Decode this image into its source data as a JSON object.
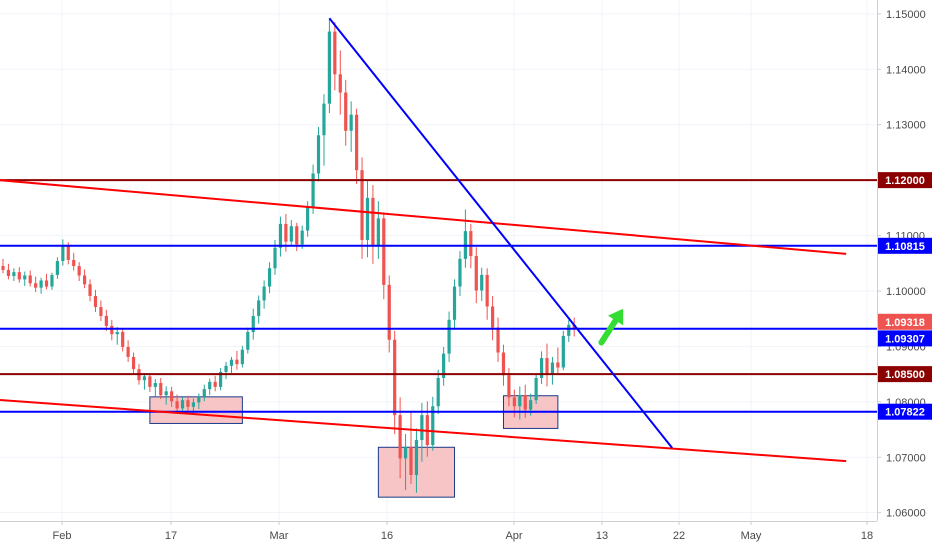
{
  "chart_data": {
    "type": "candlestick",
    "x_tick_labels": [
      "Feb",
      "17",
      "Mar",
      "16",
      "Apr",
      "13",
      "22",
      "May",
      "18"
    ],
    "y_tick_labels": [
      "1.15000",
      "1.14000",
      "1.13000",
      "1.12000",
      "1.11000",
      "1.10000",
      "1.09000",
      "1.08000",
      "1.07000",
      "1.06000"
    ],
    "y_ticks": [
      1.15,
      1.14,
      1.13,
      1.12,
      1.11,
      1.1,
      1.09,
      1.08,
      1.07,
      1.06
    ],
    "ylim": [
      1.0585,
      1.1525
    ],
    "grid": true,
    "colors": {
      "up": "#26a69a",
      "down": "#ef5350",
      "horizontal_blue": "#0000ff",
      "horizontal_darkred": "#8b0000",
      "channel_red": "#ff0000",
      "trendline_blue": "#0000ff",
      "arrow": "#33dd33",
      "support_zone_fill": "#f7c5c5",
      "support_zone_border": "#1a3a8a"
    },
    "horizontal_levels": [
      {
        "label": "1.12000",
        "value": 1.12,
        "color": "#8b0000"
      },
      {
        "label": "1.10815",
        "value": 1.10815,
        "color": "#0000ff"
      },
      {
        "label": "1.09318",
        "value": 1.09318,
        "color": "#0000ff"
      },
      {
        "label": "1.09307",
        "value": 1.09307,
        "color": "#0000ff"
      },
      {
        "label": "1.08500",
        "value": 1.085,
        "color": "#8b0000"
      },
      {
        "label": "1.07822",
        "value": 1.07822,
        "color": "#0000ff"
      }
    ],
    "current_price": {
      "label": "1.09318",
      "value": 1.09318,
      "color": "#ef5350"
    },
    "channel_lines": [
      {
        "from": {
          "bar": -3,
          "price": 1.1202
        },
        "to": {
          "bar": 155,
          "price": 1.1067
        }
      },
      {
        "from": {
          "bar": -3,
          "price": 1.0805
        },
        "to": {
          "bar": 155,
          "price": 1.0693
        }
      }
    ],
    "descending_trendline": {
      "from": {
        "bar": 60,
        "price": 1.1492
      },
      "to": {
        "bar": 123,
        "price": 1.0717
      }
    },
    "support_zones": [
      {
        "bar_start": 27,
        "bar_end": 44,
        "price_high": 1.0809,
        "price_low": 1.0761
      },
      {
        "bar_start": 69,
        "bar_end": 83,
        "price_high": 1.0718,
        "price_low": 1.0628
      },
      {
        "bar_start": 92,
        "bar_end": 102,
        "price_high": 1.0811,
        "price_low": 1.0752
      }
    ],
    "arrow": {
      "from": {
        "bar": 110,
        "price": 1.0907
      },
      "to": {
        "bar": 114,
        "price": 1.0968
      }
    },
    "bars": [
      {
        "o": 1.1045,
        "h": 1.1058,
        "l": 1.1032,
        "c": 1.1038
      },
      {
        "o": 1.1038,
        "h": 1.1049,
        "l": 1.1021,
        "c": 1.1027
      },
      {
        "o": 1.1027,
        "h": 1.1041,
        "l": 1.1018,
        "c": 1.1034
      },
      {
        "o": 1.1034,
        "h": 1.1043,
        "l": 1.1015,
        "c": 1.1021
      },
      {
        "o": 1.1021,
        "h": 1.1035,
        "l": 1.1009,
        "c": 1.1028
      },
      {
        "o": 1.1028,
        "h": 1.1037,
        "l": 1.1008,
        "c": 1.1014
      },
      {
        "o": 1.1014,
        "h": 1.1026,
        "l": 1.0998,
        "c": 1.1006
      },
      {
        "o": 1.1006,
        "h": 1.1024,
        "l": 1.0995,
        "c": 1.1019
      },
      {
        "o": 1.1019,
        "h": 1.1031,
        "l": 1.1003,
        "c": 1.1008
      },
      {
        "o": 1.1008,
        "h": 1.1033,
        "l": 1.1002,
        "c": 1.1029
      },
      {
        "o": 1.1029,
        "h": 1.1061,
        "l": 1.1022,
        "c": 1.1054
      },
      {
        "o": 1.1054,
        "h": 1.1093,
        "l": 1.1046,
        "c": 1.1082
      },
      {
        "o": 1.1082,
        "h": 1.1088,
        "l": 1.1048,
        "c": 1.1056
      },
      {
        "o": 1.1056,
        "h": 1.1069,
        "l": 1.1037,
        "c": 1.1045
      },
      {
        "o": 1.1045,
        "h": 1.1052,
        "l": 1.1018,
        "c": 1.1028
      },
      {
        "o": 1.1028,
        "h": 1.1039,
        "l": 1.1005,
        "c": 1.1012
      },
      {
        "o": 1.1012,
        "h": 1.1021,
        "l": 1.0981,
        "c": 1.0991
      },
      {
        "o": 1.0991,
        "h": 1.1002,
        "l": 1.0962,
        "c": 1.0971
      },
      {
        "o": 1.0971,
        "h": 1.0983,
        "l": 1.0946,
        "c": 1.0955
      },
      {
        "o": 1.0955,
        "h": 1.0966,
        "l": 1.0928,
        "c": 1.0937
      },
      {
        "o": 1.0937,
        "h": 1.0948,
        "l": 1.0911,
        "c": 1.0922
      },
      {
        "o": 1.0922,
        "h": 1.0935,
        "l": 1.0903,
        "c": 1.0926
      },
      {
        "o": 1.0926,
        "h": 1.0932,
        "l": 1.0891,
        "c": 1.0899
      },
      {
        "o": 1.0899,
        "h": 1.0911,
        "l": 1.0872,
        "c": 1.0881
      },
      {
        "o": 1.0881,
        "h": 1.0889,
        "l": 1.0851,
        "c": 1.0859
      },
      {
        "o": 1.0859,
        "h": 1.0868,
        "l": 1.0831,
        "c": 1.0839
      },
      {
        "o": 1.0839,
        "h": 1.0852,
        "l": 1.0822,
        "c": 1.0846
      },
      {
        "o": 1.0846,
        "h": 1.0851,
        "l": 1.0818,
        "c": 1.0827
      },
      {
        "o": 1.0827,
        "h": 1.0841,
        "l": 1.0809,
        "c": 1.0834
      },
      {
        "o": 1.0834,
        "h": 1.0843,
        "l": 1.0805,
        "c": 1.0812
      },
      {
        "o": 1.0812,
        "h": 1.0828,
        "l": 1.0795,
        "c": 1.0819
      },
      {
        "o": 1.0819,
        "h": 1.0827,
        "l": 1.0791,
        "c": 1.0801
      },
      {
        "o": 1.0801,
        "h": 1.0813,
        "l": 1.0779,
        "c": 1.0788
      },
      {
        "o": 1.0788,
        "h": 1.0808,
        "l": 1.0778,
        "c": 1.0803
      },
      {
        "o": 1.0803,
        "h": 1.0811,
        "l": 1.0782,
        "c": 1.0791
      },
      {
        "o": 1.0791,
        "h": 1.0806,
        "l": 1.0779,
        "c": 1.0799
      },
      {
        "o": 1.0799,
        "h": 1.0815,
        "l": 1.0787,
        "c": 1.0809
      },
      {
        "o": 1.0809,
        "h": 1.0831,
        "l": 1.0801,
        "c": 1.0823
      },
      {
        "o": 1.0823,
        "h": 1.0842,
        "l": 1.0812,
        "c": 1.0836
      },
      {
        "o": 1.0836,
        "h": 1.0847,
        "l": 1.0819,
        "c": 1.0827
      },
      {
        "o": 1.0827,
        "h": 1.0861,
        "l": 1.0821,
        "c": 1.0854
      },
      {
        "o": 1.0854,
        "h": 1.0872,
        "l": 1.0841,
        "c": 1.0865
      },
      {
        "o": 1.0865,
        "h": 1.0881,
        "l": 1.0852,
        "c": 1.0876
      },
      {
        "o": 1.0876,
        "h": 1.0892,
        "l": 1.0858,
        "c": 1.0868
      },
      {
        "o": 1.0868,
        "h": 1.0901,
        "l": 1.0862,
        "c": 1.0894
      },
      {
        "o": 1.0894,
        "h": 1.0934,
        "l": 1.0887,
        "c": 1.0926
      },
      {
        "o": 1.0926,
        "h": 1.0968,
        "l": 1.0912,
        "c": 1.0955
      },
      {
        "o": 1.0955,
        "h": 1.0992,
        "l": 1.0941,
        "c": 1.0983
      },
      {
        "o": 1.0983,
        "h": 1.1019,
        "l": 1.0968,
        "c": 1.1008
      },
      {
        "o": 1.1008,
        "h": 1.1052,
        "l": 1.0996,
        "c": 1.1041
      },
      {
        "o": 1.1041,
        "h": 1.1092,
        "l": 1.1029,
        "c": 1.1078
      },
      {
        "o": 1.1078,
        "h": 1.1134,
        "l": 1.1062,
        "c": 1.1121
      },
      {
        "o": 1.1121,
        "h": 1.1139,
        "l": 1.1071,
        "c": 1.1089
      },
      {
        "o": 1.1089,
        "h": 1.1128,
        "l": 1.1081,
        "c": 1.1117
      },
      {
        "o": 1.1117,
        "h": 1.1123,
        "l": 1.1072,
        "c": 1.1084
      },
      {
        "o": 1.1084,
        "h": 1.1118,
        "l": 1.1076,
        "c": 1.1109
      },
      {
        "o": 1.1109,
        "h": 1.1162,
        "l": 1.1098,
        "c": 1.1151
      },
      {
        "o": 1.1151,
        "h": 1.1228,
        "l": 1.1139,
        "c": 1.1212
      },
      {
        "o": 1.1212,
        "h": 1.1296,
        "l": 1.1198,
        "c": 1.1281
      },
      {
        "o": 1.1281,
        "h": 1.1355,
        "l": 1.1226,
        "c": 1.1338
      },
      {
        "o": 1.1338,
        "h": 1.1492,
        "l": 1.1321,
        "c": 1.1468
      },
      {
        "o": 1.1468,
        "h": 1.1485,
        "l": 1.1362,
        "c": 1.1391
      },
      {
        "o": 1.1391,
        "h": 1.1434,
        "l": 1.1318,
        "c": 1.1358
      },
      {
        "o": 1.1358,
        "h": 1.1381,
        "l": 1.1262,
        "c": 1.1289
      },
      {
        "o": 1.1289,
        "h": 1.1342,
        "l": 1.1251,
        "c": 1.1318
      },
      {
        "o": 1.1318,
        "h": 1.1329,
        "l": 1.1193,
        "c": 1.1218
      },
      {
        "o": 1.1218,
        "h": 1.1241,
        "l": 1.1058,
        "c": 1.1092
      },
      {
        "o": 1.1092,
        "h": 1.1198,
        "l": 1.1061,
        "c": 1.1168
      },
      {
        "o": 1.1168,
        "h": 1.1191,
        "l": 1.1049,
        "c": 1.1081
      },
      {
        "o": 1.1081,
        "h": 1.1162,
        "l": 1.1058,
        "c": 1.1131
      },
      {
        "o": 1.1131,
        "h": 1.1142,
        "l": 1.0985,
        "c": 1.1011
      },
      {
        "o": 1.1011,
        "h": 1.1028,
        "l": 1.0889,
        "c": 1.0912
      },
      {
        "o": 1.0912,
        "h": 1.0928,
        "l": 1.0742,
        "c": 1.0776
      },
      {
        "o": 1.0776,
        "h": 1.0808,
        "l": 1.0662,
        "c": 1.0698
      },
      {
        "o": 1.0698,
        "h": 1.0742,
        "l": 1.0641,
        "c": 1.0719
      },
      {
        "o": 1.0719,
        "h": 1.0781,
        "l": 1.0652,
        "c": 1.0668
      },
      {
        "o": 1.0668,
        "h": 1.0752,
        "l": 1.0636,
        "c": 1.0731
      },
      {
        "o": 1.0731,
        "h": 1.0798,
        "l": 1.0692,
        "c": 1.0776
      },
      {
        "o": 1.0776,
        "h": 1.0801,
        "l": 1.0701,
        "c": 1.0722
      },
      {
        "o": 1.0722,
        "h": 1.0809,
        "l": 1.0712,
        "c": 1.0792
      },
      {
        "o": 1.0792,
        "h": 1.0858,
        "l": 1.0778,
        "c": 1.0843
      },
      {
        "o": 1.0843,
        "h": 1.0899,
        "l": 1.0829,
        "c": 1.0887
      },
      {
        "o": 1.0887,
        "h": 1.0963,
        "l": 1.0872,
        "c": 1.0948
      },
      {
        "o": 1.0948,
        "h": 1.1021,
        "l": 1.0931,
        "c": 1.1008
      },
      {
        "o": 1.1008,
        "h": 1.1072,
        "l": 1.0991,
        "c": 1.1058
      },
      {
        "o": 1.1058,
        "h": 1.1147,
        "l": 1.1042,
        "c": 1.1108
      },
      {
        "o": 1.1108,
        "h": 1.1121,
        "l": 1.1041,
        "c": 1.1063
      },
      {
        "o": 1.1063,
        "h": 1.1079,
        "l": 1.0978,
        "c": 1.1001
      },
      {
        "o": 1.1001,
        "h": 1.1042,
        "l": 1.0982,
        "c": 1.1029
      },
      {
        "o": 1.1029,
        "h": 1.1041,
        "l": 1.0948,
        "c": 1.0972
      },
      {
        "o": 1.0972,
        "h": 1.0991,
        "l": 1.0911,
        "c": 1.0934
      },
      {
        "o": 1.0934,
        "h": 1.0952,
        "l": 1.0872,
        "c": 1.0889
      },
      {
        "o": 1.0889,
        "h": 1.0903,
        "l": 1.0829,
        "c": 1.0848
      },
      {
        "o": 1.0848,
        "h": 1.0861,
        "l": 1.0792,
        "c": 1.0808
      },
      {
        "o": 1.0808,
        "h": 1.0822,
        "l": 1.0772,
        "c": 1.0792
      },
      {
        "o": 1.0792,
        "h": 1.0828,
        "l": 1.0768,
        "c": 1.0812
      },
      {
        "o": 1.0812,
        "h": 1.0831,
        "l": 1.0771,
        "c": 1.0786
      },
      {
        "o": 1.0786,
        "h": 1.0815,
        "l": 1.0775,
        "c": 1.0803
      },
      {
        "o": 1.0803,
        "h": 1.0852,
        "l": 1.0796,
        "c": 1.0843
      },
      {
        "o": 1.0843,
        "h": 1.0891,
        "l": 1.0832,
        "c": 1.0879
      },
      {
        "o": 1.0879,
        "h": 1.0905,
        "l": 1.0828,
        "c": 1.0849
      },
      {
        "o": 1.0849,
        "h": 1.0881,
        "l": 1.0831,
        "c": 1.0871
      },
      {
        "o": 1.0871,
        "h": 1.0898,
        "l": 1.0852,
        "c": 1.0862
      },
      {
        "o": 1.0862,
        "h": 1.0928,
        "l": 1.0857,
        "c": 1.0919
      },
      {
        "o": 1.0919,
        "h": 1.0948,
        "l": 1.0908,
        "c": 1.0939
      },
      {
        "o": 1.0939,
        "h": 1.0952,
        "l": 1.0918,
        "c": 1.0931
      }
    ]
  }
}
